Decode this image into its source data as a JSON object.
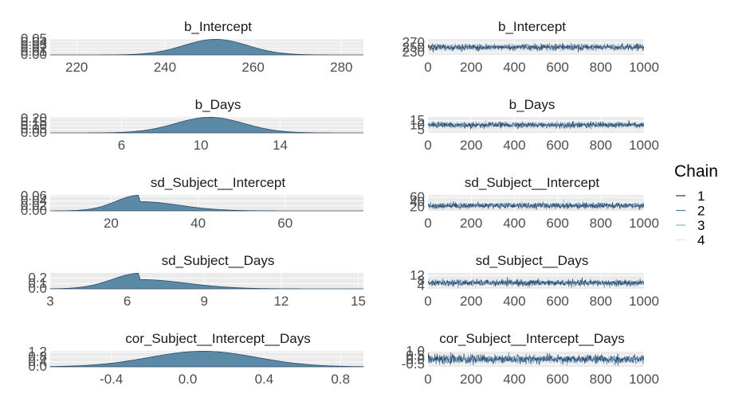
{
  "chart_data": {
    "type": "area",
    "layout": "5 rows x 2 columns (density | trace)",
    "legend": {
      "title": "Chain",
      "entries": [
        "1",
        "2",
        "3",
        "4"
      ],
      "colors": [
        "#1f3a5c",
        "#4f7fa6",
        "#8db4d0",
        "#dbe8f2"
      ],
      "placement": "right"
    },
    "density_color": "#5b8aa6",
    "density_outline": "#2b4a66",
    "panel_background": "#ebebeb",
    "grid": true,
    "parameters": [
      {
        "name": "b_Intercept",
        "density": {
          "xlim": [
            214,
            285
          ],
          "x_ticks": [
            220,
            240,
            260,
            280
          ],
          "ylim": [
            0,
            0.05
          ],
          "y_ticks": [
            "0.00",
            "0.01",
            "0.02",
            "0.03",
            "0.04",
            "0.05"
          ],
          "mean": 251.5,
          "sd": 7.2
        },
        "trace": {
          "xlim": [
            0,
            1000
          ],
          "x_ticks": [
            0,
            200,
            400,
            600,
            800,
            1000
          ],
          "ylim": [
            220,
            285
          ],
          "y_ticks": [
            "230",
            "250",
            "270"
          ],
          "center": 251.5,
          "spread": 7.2
        }
      },
      {
        "name": "b_Days",
        "density": {
          "xlim": [
            2.4,
            18.2
          ],
          "x_ticks": [
            6,
            10,
            14
          ],
          "ylim": [
            0,
            0.22
          ],
          "y_ticks": [
            "0.00",
            "0.05",
            "0.10",
            "0.15",
            "0.20"
          ],
          "mean": 10.45,
          "sd": 1.72
        },
        "trace": {
          "xlim": [
            0,
            1000
          ],
          "x_ticks": [
            0,
            200,
            400,
            600,
            800,
            1000
          ],
          "ylim": [
            2,
            19
          ],
          "y_ticks": [
            "5",
            "10",
            "15"
          ],
          "center": 10.45,
          "spread": 1.72
        }
      },
      {
        "name": "sd_Subject__Intercept",
        "density": {
          "xlim": [
            6,
            78
          ],
          "x_ticks": [
            20,
            40,
            60
          ],
          "ylim": [
            0,
            0.065
          ],
          "y_ticks": [
            "0.00",
            "0.02",
            "0.04",
            "0.06"
          ],
          "mean": 26.5,
          "sd": 6.8,
          "skew": true
        },
        "trace": {
          "xlim": [
            0,
            1000
          ],
          "x_ticks": [
            0,
            200,
            400,
            600,
            800,
            1000
          ],
          "ylim": [
            5,
            70
          ],
          "y_ticks": [
            "20",
            "40",
            "60"
          ],
          "center": 26.5,
          "spread": 6.8
        }
      },
      {
        "name": "sd_Subject__Days",
        "density": {
          "xlim": [
            3,
            15.2
          ],
          "x_ticks": [
            3,
            6,
            9,
            12,
            15
          ],
          "ylim": [
            0,
            0.3
          ],
          "y_ticks": [
            "0.0",
            "0.1",
            "0.2"
          ],
          "mean": 6.5,
          "sd": 1.35,
          "skew": true
        },
        "trace": {
          "xlim": [
            0,
            1000
          ],
          "x_ticks": [
            0,
            200,
            400,
            600,
            800,
            1000
          ],
          "ylim": [
            2,
            14
          ],
          "y_ticks": [
            "4",
            "8",
            "12"
          ],
          "center": 6.5,
          "spread": 1.35
        }
      },
      {
        "name": "cor_Subject__Intercept__Days",
        "density": {
          "xlim": [
            -0.72,
            0.92
          ],
          "x_ticks": [
            -0.4,
            0.0,
            0.4,
            0.8
          ],
          "x_tick_labels": [
            "-0.4",
            "0.0",
            "0.4",
            "0.8"
          ],
          "ylim": [
            0,
            1.3
          ],
          "y_ticks": [
            "0.0",
            "0.4",
            "0.8",
            "1.2"
          ],
          "mean": 0.08,
          "sd": 0.28
        },
        "trace": {
          "xlim": [
            0,
            1000
          ],
          "x_ticks": [
            0,
            200,
            400,
            600,
            800,
            1000
          ],
          "ylim": [
            -0.8,
            1.05
          ],
          "y_ticks": [
            "-0.5",
            "0.0",
            "0.5",
            "1.0"
          ],
          "center": 0.08,
          "spread": 0.28
        }
      }
    ]
  }
}
